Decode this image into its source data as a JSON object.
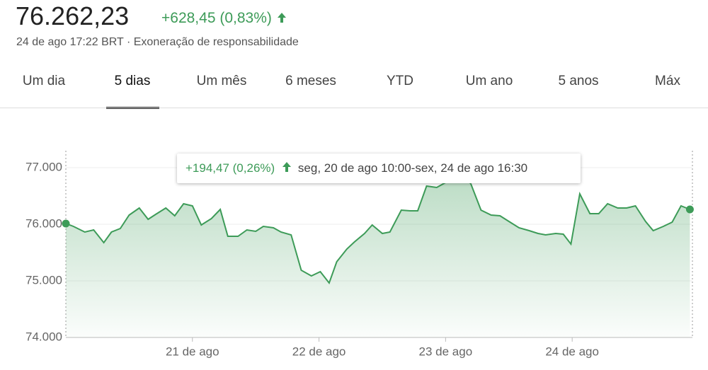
{
  "header": {
    "price": "76.262,23",
    "change": "+628,45 (0,83%)",
    "meta": "24 de ago 17:22 BRT · Exoneração de responsabilidade"
  },
  "tabs": [
    "Um dia",
    "5 dias",
    "Um mês",
    "6 meses",
    "YTD",
    "Um ano",
    "5 anos",
    "Máx"
  ],
  "chart_data": {
    "type": "line",
    "annotation": {
      "change": "+194,47 (0,26%)",
      "range": "seg, 20 de ago 10:00-sex, 24 de ago 16:30"
    },
    "x": [
      0,
      0.06,
      0.15,
      0.22,
      0.3,
      0.36,
      0.43,
      0.5,
      0.58,
      0.65,
      0.71,
      0.79,
      0.86,
      0.93,
      1.0,
      1.07,
      1.15,
      1.22,
      1.28,
      1.36,
      1.43,
      1.5,
      1.56,
      1.64,
      1.7,
      1.78,
      1.86,
      1.94,
      2.01,
      2.08,
      2.14,
      2.22,
      2.28,
      2.36,
      2.42,
      2.5,
      2.56,
      2.65,
      2.72,
      2.78,
      2.85,
      2.93,
      3.0,
      3.06,
      3.14,
      3.2,
      3.28,
      3.36,
      3.43,
      3.5,
      3.58,
      3.66,
      3.73,
      3.79,
      3.87,
      3.93,
      3.99,
      4.06,
      4.14,
      4.21,
      4.28,
      4.36,
      4.43,
      4.5,
      4.58,
      4.64,
      4.72,
      4.79,
      4.86,
      4.93
    ],
    "series": [
      {
        "color": "#3d9b58",
        "values": [
          76012,
          75962,
          75862,
          75900,
          75675,
          75862,
          75925,
          76162,
          76287,
          76087,
          76175,
          76287,
          76150,
          76362,
          76325,
          75987,
          76100,
          76262,
          75787,
          75787,
          75900,
          75875,
          75962,
          75937,
          75862,
          75812,
          75187,
          75087,
          75162,
          74962,
          75337,
          75562,
          75687,
          75837,
          75987,
          75837,
          75862,
          76250,
          76237,
          76237,
          76675,
          76650,
          76737,
          76837,
          76862,
          76712,
          76250,
          76162,
          76150,
          76050,
          75937,
          75887,
          75837,
          75812,
          75837,
          75825,
          75650,
          76537,
          76187,
          76187,
          76362,
          76287,
          76287,
          76325,
          76050,
          75887,
          75962,
          76037,
          76325,
          76262
        ]
      }
    ],
    "xlim": [
      0,
      4.95
    ],
    "xticks": [
      {
        "value": 1,
        "label": "21 de ago"
      },
      {
        "value": 2,
        "label": "22 de ago"
      },
      {
        "value": 3,
        "label": "23 de ago"
      },
      {
        "value": 4,
        "label": "24 de ago"
      }
    ],
    "ylim": [
      74000,
      77300
    ],
    "yticks": [
      {
        "value": 74000,
        "label": "74.000"
      },
      {
        "value": 75000,
        "label": "75.000"
      },
      {
        "value": 76000,
        "label": "76.000"
      },
      {
        "value": 77000,
        "label": "77.000"
      }
    ],
    "grid": true
  }
}
